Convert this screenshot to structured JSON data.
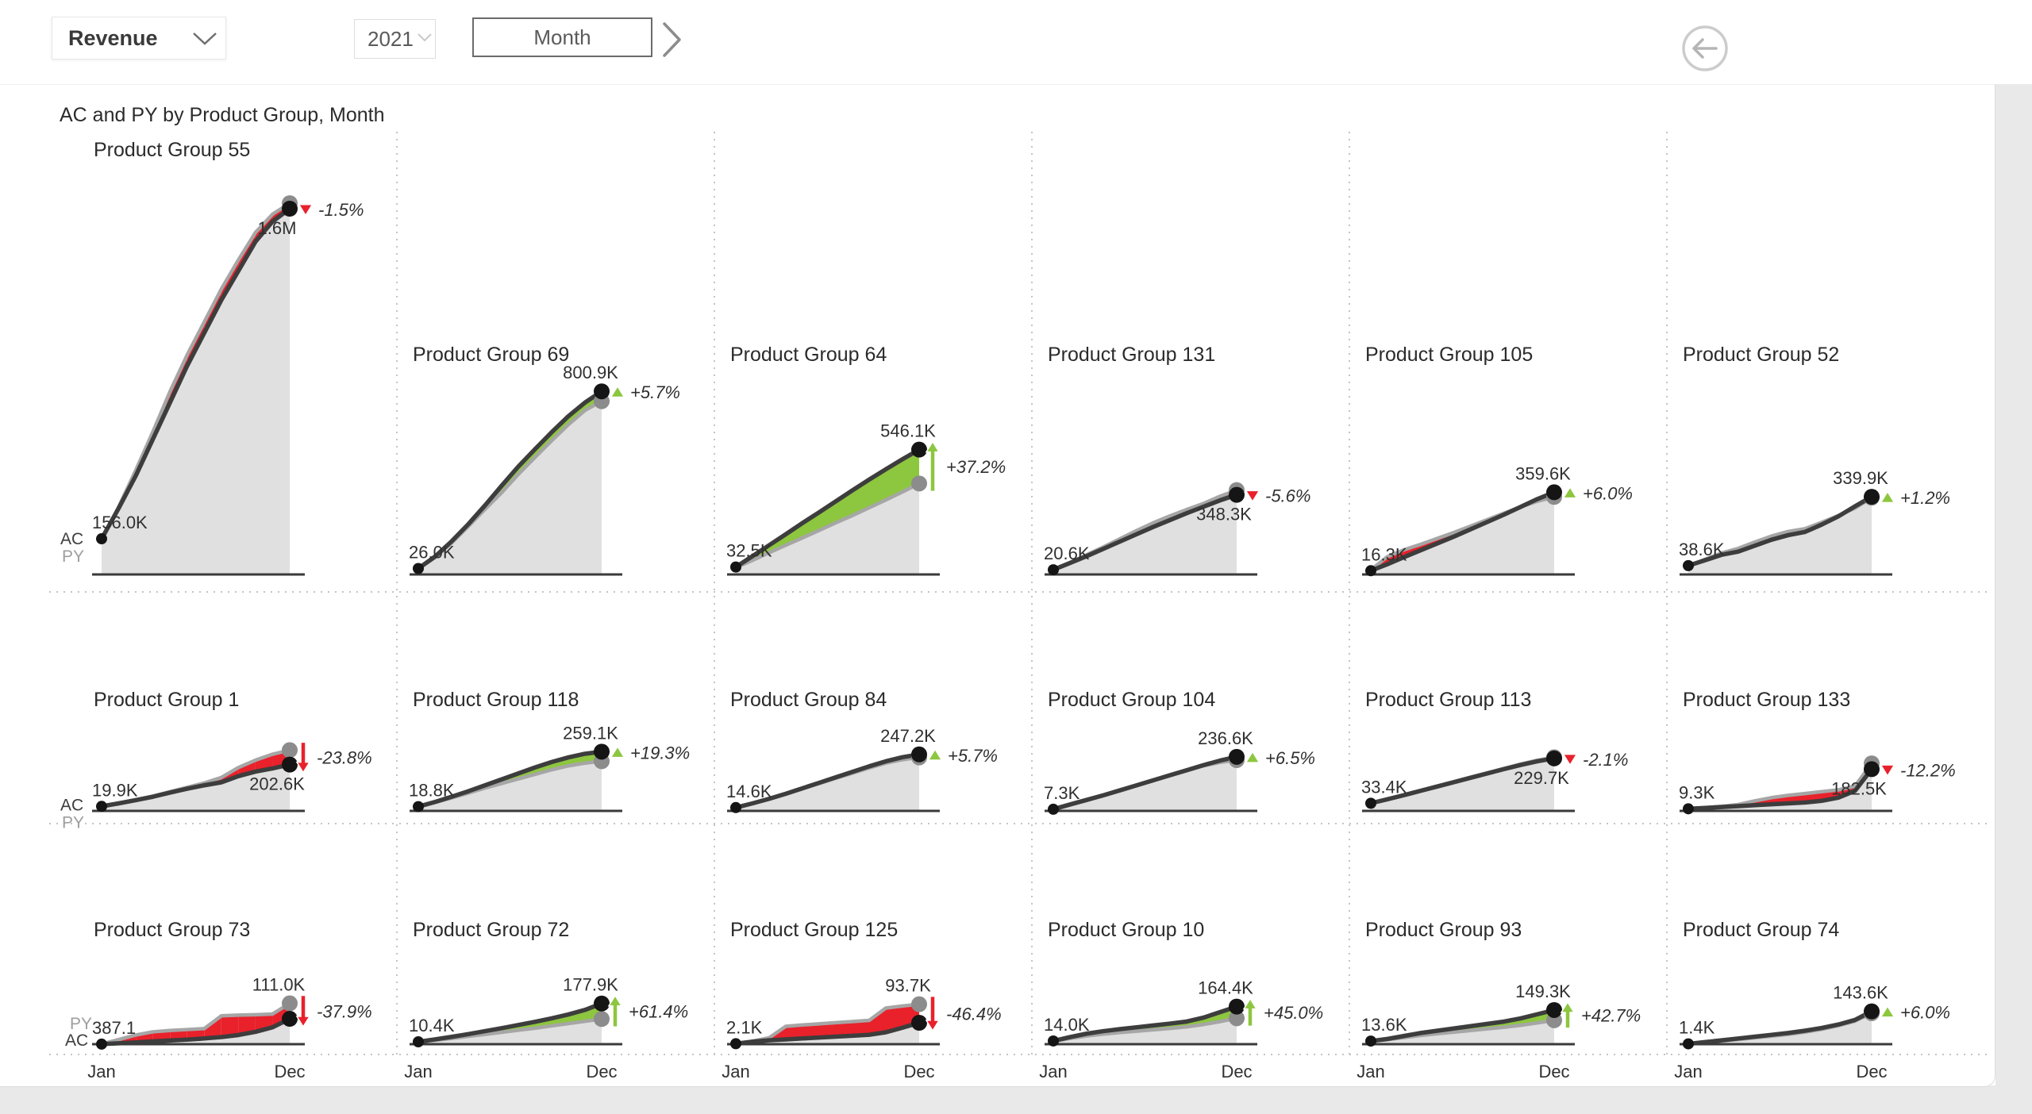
{
  "toolbar": {
    "measure": {
      "value": "Revenue"
    },
    "year": {
      "value": "2021"
    },
    "granularity": {
      "label": "Month"
    }
  },
  "report": {
    "title": "AC and PY by Product Group, Month"
  },
  "colors": {
    "ac_line": "#3d3d3d",
    "py_line": "#a6a6a6",
    "area_fill": "#dadada",
    "positive": "#8dc63f",
    "negative": "#e8212b",
    "dot_ac": "#151515",
    "dot_py": "#8c8c8c",
    "text": "#303030",
    "title_text": "#2b2b2b",
    "separator": "#c4c4c4"
  },
  "chart_data": {
    "type": "area",
    "title": "AC and PY by Product Group, Month",
    "series_names": [
      "AC",
      "PY"
    ],
    "x": [
      "Jan",
      "Feb",
      "Mar",
      "Apr",
      "May",
      "Jun",
      "Jul",
      "Aug",
      "Sep",
      "Oct",
      "Nov",
      "Dec"
    ],
    "x_axis_shown": [
      "Jan",
      "Dec"
    ],
    "unit": "thousands",
    "ylim_K": [
      0,
      1600
    ],
    "legend_position": "left-of-first-column",
    "charts": [
      {
        "name": "Product Group 55",
        "start_label": "156.0K",
        "end_label": "1.6M",
        "pct_label": "-1.5%",
        "direction": "down",
        "marker": "triangle",
        "end_label_pos": "below",
        "legend": [
          "AC",
          "PY"
        ],
        "ac": [
          156,
          290,
          432,
          592,
          752,
          912,
          1056,
          1200,
          1328,
          1456,
          1544,
          1600
        ],
        "py": [
          150,
          296,
          456,
          624,
          800,
          960,
          1104,
          1248,
          1376,
          1496,
          1576,
          1624
        ]
      },
      {
        "name": "Product Group 69",
        "start_label": "26.0K",
        "end_label": "800.9K",
        "pct_label": "+5.7%",
        "direction": "up",
        "marker": "triangle",
        "end_label_pos": "above",
        "ac": [
          26,
          78,
          145,
          220,
          302,
          388,
          472,
          548,
          622,
          692,
          752,
          800.9
        ],
        "py": [
          25,
          74,
          138,
          210,
          285,
          358,
          438,
          512,
          585,
          655,
          718,
          757.7
        ]
      },
      {
        "name": "Product Group 64",
        "start_label": "32.5K",
        "end_label": "546.1K",
        "pct_label": "+37.2%",
        "direction": "up",
        "marker": "arrow",
        "end_label_pos": "above",
        "ac": [
          32.5,
          80,
          128,
          176,
          225,
          272,
          320,
          368,
          415,
          460,
          504,
          546.1
        ],
        "py": [
          30,
          62,
          95,
          128,
          160,
          193,
          226,
          258,
          292,
          326,
          361,
          398
        ]
      },
      {
        "name": "Product Group 131",
        "start_label": "20.6K",
        "end_label": "348.3K",
        "pct_label": "-5.6%",
        "direction": "down",
        "marker": "triangle",
        "end_label_pos": "below",
        "ac": [
          20.6,
          50,
          80,
          112,
          144,
          176,
          208,
          238,
          268,
          296,
          324,
          348.3
        ],
        "py": [
          20,
          52,
          86,
          120,
          156,
          192,
          226,
          256,
          284,
          310,
          342,
          369
        ]
      },
      {
        "name": "Product Group 105",
        "start_label": "16.3K",
        "end_label": "359.6K",
        "pct_label": "+6.0%",
        "direction": "up",
        "marker": "triangle",
        "end_label_pos": "above",
        "ac": [
          16.3,
          45,
          76,
          106,
          136,
          166,
          198,
          230,
          262,
          296,
          330,
          359.6
        ],
        "py": [
          20,
          78,
          108,
          132,
          158,
          184,
          212,
          240,
          268,
          296,
          320,
          339.2
        ]
      },
      {
        "name": "Product Group 52",
        "start_label": "38.6K",
        "end_label": "339.9K",
        "pct_label": "+1.2%",
        "direction": "up",
        "marker": "triangle",
        "end_label_pos": "above",
        "ac": [
          38.6,
          62,
          86,
          100,
          126,
          152,
          172,
          186,
          218,
          254,
          298,
          339.9
        ],
        "py": [
          37,
          66,
          94,
          114,
          142,
          168,
          188,
          200,
          228,
          258,
          290,
          335.9
        ]
      },
      {
        "name": "Product Group 1",
        "start_label": "19.9K",
        "end_label": "202.6K",
        "pct_label": "-23.8%",
        "direction": "down",
        "marker": "arrow",
        "end_label_pos": "below",
        "legend": [
          "AC",
          "PY"
        ],
        "ac": [
          19.9,
          33,
          47,
          62,
          80,
          97,
          112,
          125,
          152,
          172,
          186,
          202.6
        ],
        "py": [
          19,
          34,
          49,
          65,
          84,
          103,
          122,
          146,
          190,
          222,
          248,
          265.9
        ]
      },
      {
        "name": "Product Group 118",
        "start_label": "18.8K",
        "end_label": "259.1K",
        "pct_label": "+19.3%",
        "direction": "up",
        "marker": "triangle",
        "end_label_pos": "above",
        "ac": [
          18.8,
          39,
          62,
          86,
          112,
          138,
          164,
          190,
          214,
          234,
          250,
          259.1
        ],
        "py": [
          18,
          37,
          57,
          78,
          100,
          120,
          140,
          160,
          180,
          197,
          209,
          217.2
        ]
      },
      {
        "name": "Product Group 84",
        "start_label": "14.6K",
        "end_label": "247.2K",
        "pct_label": "+5.7%",
        "direction": "up",
        "marker": "triangle",
        "end_label_pos": "above",
        "ac": [
          14.6,
          33,
          53,
          75,
          99,
          123,
          147,
          171,
          195,
          217,
          235,
          247.2
        ],
        "py": [
          14,
          32,
          52,
          74,
          97,
          120,
          143,
          165,
          188,
          209,
          224,
          233.9
        ]
      },
      {
        "name": "Product Group 104",
        "start_label": "7.3K",
        "end_label": "236.6K",
        "pct_label": "+6.5%",
        "direction": "up",
        "marker": "triangle",
        "end_label_pos": "above",
        "ac": [
          7.3,
          28,
          48,
          68,
          90,
          112,
          134,
          156,
          178,
          200,
          220,
          236.6
        ],
        "py": [
          9.5,
          30,
          50,
          70,
          91,
          112,
          133,
          154,
          176,
          197,
          212,
          222.2
        ]
      },
      {
        "name": "Product Group 113",
        "start_label": "33.4K",
        "end_label": "229.7K",
        "pct_label": "-2.1%",
        "direction": "down",
        "marker": "triangle",
        "end_label_pos": "below",
        "ac": [
          33.4,
          51,
          69,
          88,
          107,
          126,
          145,
          164,
          183,
          201,
          217,
          229.7
        ],
        "py": [
          33,
          52,
          71,
          90,
          109,
          128,
          148,
          167,
          186,
          205,
          222,
          234.6
        ]
      },
      {
        "name": "Product Group 133",
        "start_label": "9.3K",
        "end_label": "182.5K",
        "pct_label": "-12.2%",
        "direction": "down",
        "marker": "triangle",
        "end_label_pos": "below",
        "ac": [
          9.3,
          13,
          17,
          21,
          25,
          29,
          33,
          37,
          44,
          58,
          88,
          182.5
        ],
        "py": [
          9,
          14,
          20,
          28,
          44,
          58,
          68,
          76,
          84,
          92,
          108,
          207.9
        ]
      },
      {
        "name": "Product Group 73",
        "start_label": "387.1",
        "end_label": "111.0K",
        "pct_label": "-37.9%",
        "direction": "down",
        "marker": "arrow",
        "end_label_pos": "above",
        "legend": [
          "PY",
          "AC"
        ],
        "x_labels": [
          "Jan",
          "Dec"
        ],
        "ac": [
          0.39,
          4,
          8,
          12,
          16,
          20,
          25,
          31,
          40,
          54,
          74,
          111
        ],
        "py": [
          0.5,
          20,
          40,
          54,
          60,
          64,
          68,
          124,
          127,
          129,
          132,
          178.7
        ]
      },
      {
        "name": "Product Group 72",
        "start_label": "10.4K",
        "end_label": "177.9K",
        "pct_label": "+61.4%",
        "direction": "up",
        "marker": "arrow",
        "end_label_pos": "above",
        "x_labels": [
          "Jan",
          "Dec"
        ],
        "ac": [
          10.4,
          21,
          32,
          44,
          57,
          70,
          84,
          98,
          113,
          130,
          150,
          177.9
        ],
        "py": [
          10,
          17,
          25,
          34,
          43,
          52,
          61,
          70,
          80,
          90,
          100,
          110.2
        ]
      },
      {
        "name": "Product Group 125",
        "start_label": "2.1K",
        "end_label": "93.7K",
        "pct_label": "-46.4%",
        "direction": "down",
        "marker": "arrow",
        "end_label_pos": "above",
        "x_labels": [
          "Jan",
          "Dec"
        ],
        "ac": [
          2.1,
          11,
          17,
          21,
          25,
          29,
          33,
          37,
          41,
          52,
          72,
          93.7
        ],
        "py": [
          2,
          13,
          28,
          78,
          84,
          89,
          94,
          99,
          104,
          158,
          167,
          174.8
        ]
      },
      {
        "name": "Product Group 10",
        "start_label": "14.0K",
        "end_label": "164.4K",
        "pct_label": "+45.0%",
        "direction": "up",
        "marker": "arrow",
        "end_label_pos": "above",
        "x_labels": [
          "Jan",
          "Dec"
        ],
        "ac": [
          14,
          31,
          46,
          57,
          66,
          74,
          82,
          90,
          99,
          116,
          140,
          164.4
        ],
        "py": [
          13,
          25,
          36,
          44,
          51,
          57,
          63,
          69,
          76,
          86,
          99,
          113.4
        ]
      },
      {
        "name": "Product Group 93",
        "start_label": "13.6K",
        "end_label": "149.3K",
        "pct_label": "+42.7%",
        "direction": "up",
        "marker": "arrow",
        "end_label_pos": "above",
        "x_labels": [
          "Jan",
          "Dec"
        ],
        "ac": [
          13.6,
          23,
          36,
          49,
          59,
          69,
          79,
          89,
          99,
          113,
          131,
          149.3
        ],
        "py": [
          13,
          20,
          29,
          38,
          46,
          53,
          60,
          67,
          74,
          83,
          93,
          104.6
        ]
      },
      {
        "name": "Product Group 74",
        "start_label": "1.4K",
        "end_label": "143.6K",
        "pct_label": "+6.0%",
        "direction": "up",
        "marker": "triangle",
        "end_label_pos": "above",
        "x_labels": [
          "Jan",
          "Dec"
        ],
        "ac": [
          1.4,
          9,
          17,
          25,
          33,
          41,
          49,
          59,
          71,
          86,
          106,
          143.6
        ],
        "py": [
          1.3,
          7,
          14,
          21,
          28,
          35,
          43,
          53,
          65,
          81,
          101,
          135.5
        ]
      }
    ]
  }
}
